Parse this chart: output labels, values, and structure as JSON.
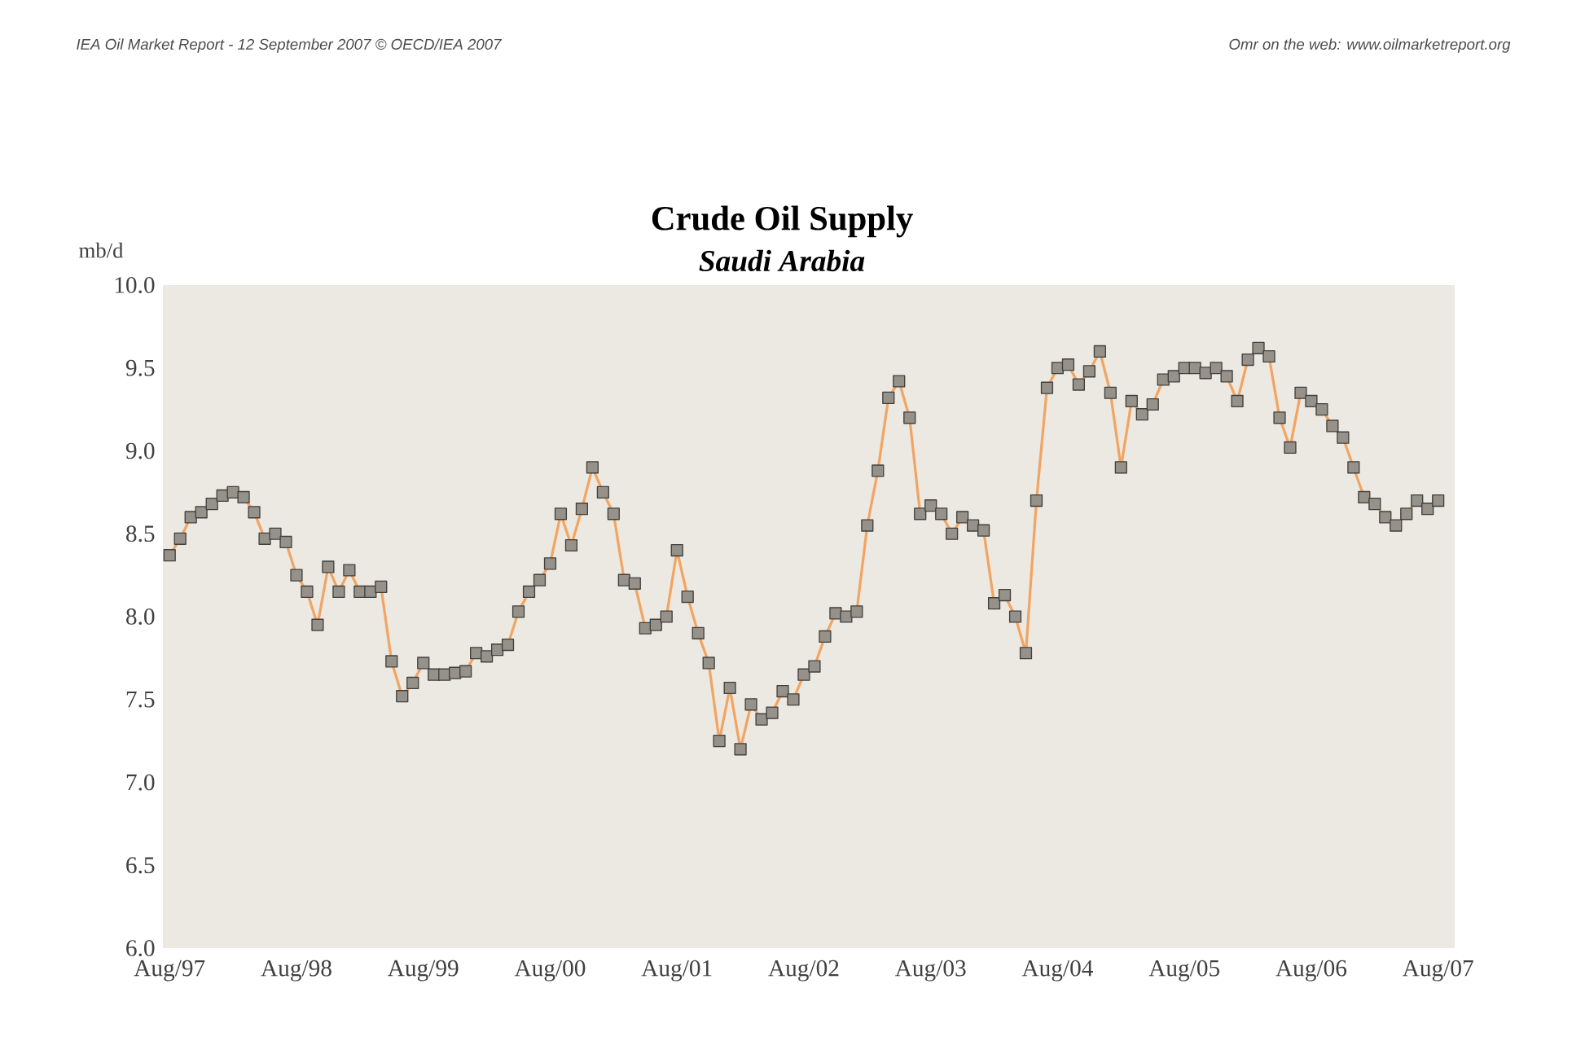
{
  "chart_data": {
    "type": "line",
    "title": "Crude Oil Supply",
    "subtitle": "Saudi Arabia",
    "ylabel": "mb/d",
    "annotations": [
      "IEA Oil Market Report - 12 September 2007   © OECD/IEA 2007",
      "Omr on the web: www.oilmarketreport.org"
    ],
    "x": [
      "1997-08",
      "1997-09",
      "1997-10",
      "1997-11",
      "1997-12",
      "1998-01",
      "1998-02",
      "1998-03",
      "1998-04",
      "1998-05",
      "1998-06",
      "1998-07",
      "1998-08",
      "1998-09",
      "1998-10",
      "1998-11",
      "1998-12",
      "1999-01",
      "1999-02",
      "1999-03",
      "1999-04",
      "1999-05",
      "1999-06",
      "1999-07",
      "1999-08",
      "1999-09",
      "1999-10",
      "1999-11",
      "1999-12",
      "2000-01",
      "2000-02",
      "2000-03",
      "2000-04",
      "2000-05",
      "2000-06",
      "2000-07",
      "2000-08",
      "2000-09",
      "2000-10",
      "2000-11",
      "2000-12",
      "2001-01",
      "2001-02",
      "2001-03",
      "2001-04",
      "2001-05",
      "2001-06",
      "2001-07",
      "2001-08",
      "2001-09",
      "2001-10",
      "2001-11",
      "2001-12",
      "2002-01",
      "2002-02",
      "2002-03",
      "2002-04",
      "2002-05",
      "2002-06",
      "2002-07",
      "2002-08",
      "2002-09",
      "2002-10",
      "2002-11",
      "2002-12",
      "2003-01",
      "2003-02",
      "2003-03",
      "2003-04",
      "2003-05",
      "2003-06",
      "2003-07",
      "2003-08",
      "2003-09",
      "2003-10",
      "2003-11",
      "2003-12",
      "2004-01",
      "2004-02",
      "2004-03",
      "2004-04",
      "2004-05",
      "2004-06",
      "2004-07",
      "2004-08",
      "2004-09",
      "2004-10",
      "2004-11",
      "2004-12",
      "2005-01",
      "2005-02",
      "2005-03",
      "2005-04",
      "2005-05",
      "2005-06",
      "2005-07",
      "2005-08",
      "2005-09",
      "2005-10",
      "2005-11",
      "2005-12",
      "2006-01",
      "2006-02",
      "2006-03",
      "2006-04",
      "2006-05",
      "2006-06",
      "2006-07",
      "2006-08",
      "2006-09",
      "2006-10",
      "2006-11",
      "2006-12",
      "2007-01",
      "2007-02",
      "2007-03",
      "2007-04",
      "2007-05",
      "2007-06",
      "2007-07",
      "2007-08"
    ],
    "series": [
      {
        "color": "#f2a462",
        "values": [
          8.37,
          8.47,
          8.6,
          8.63,
          8.68,
          8.73,
          8.75,
          8.72,
          8.63,
          8.47,
          8.5,
          8.45,
          8.25,
          8.15,
          7.95,
          8.3,
          8.15,
          8.28,
          8.15,
          8.15,
          8.18,
          7.73,
          7.52,
          7.6,
          7.72,
          7.65,
          7.65,
          7.66,
          7.67,
          7.78,
          7.76,
          7.8,
          7.83,
          8.03,
          8.15,
          8.22,
          8.32,
          8.62,
          8.43,
          8.65,
          8.9,
          8.75,
          8.62,
          8.22,
          8.2,
          7.93,
          7.95,
          8.0,
          8.4,
          8.12,
          7.9,
          7.72,
          7.25,
          7.57,
          7.2,
          7.47,
          7.38,
          7.42,
          7.55,
          7.5,
          7.65,
          7.7,
          7.88,
          8.02,
          8.0,
          8.03,
          8.55,
          8.88,
          9.32,
          9.42,
          9.2,
          8.62,
          8.67,
          8.62,
          8.5,
          8.6,
          8.55,
          8.52,
          8.08,
          8.13,
          8.0,
          7.78,
          8.7,
          9.38,
          9.5,
          9.52,
          9.4,
          9.48,
          9.6,
          9.35,
          8.9,
          9.3,
          9.22,
          9.28,
          9.43,
          9.45,
          9.5,
          9.5,
          9.47,
          9.5,
          9.45,
          9.3,
          9.55,
          9.62,
          9.57,
          9.2,
          9.02,
          9.35,
          9.3,
          9.25,
          9.15,
          9.08,
          8.9,
          8.72,
          8.68,
          8.6,
          8.55,
          8.62,
          8.7,
          8.65,
          8.7
        ]
      }
    ],
    "marker": "square",
    "line_style": "solid",
    "grid": false,
    "xlim": [
      "1997-07-12",
      "2007-09-18"
    ],
    "xticks": [
      {
        "value": "1997-08",
        "label": "Aug/97"
      },
      {
        "value": "1998-08",
        "label": "Aug/98"
      },
      {
        "value": "1999-08",
        "label": "Aug/99"
      },
      {
        "value": "2000-08",
        "label": "Aug/00"
      },
      {
        "value": "2001-08",
        "label": "Aug/01"
      },
      {
        "value": "2002-08",
        "label": "Aug/02"
      },
      {
        "value": "2003-08",
        "label": "Aug/03"
      },
      {
        "value": "2004-08",
        "label": "Aug/04"
      },
      {
        "value": "2005-08",
        "label": "Aug/05"
      },
      {
        "value": "2006-08",
        "label": "Aug/06"
      },
      {
        "value": "2007-08",
        "label": "Aug/07"
      }
    ],
    "ylim": [
      6,
      10
    ],
    "yticks": [
      {
        "value": 6,
        "label": "6.0"
      },
      {
        "value": 6.5,
        "label": "6.5"
      },
      {
        "value": 7,
        "label": "7.0"
      },
      {
        "value": 7.5,
        "label": "7.5"
      },
      {
        "value": 8,
        "label": "8.0"
      },
      {
        "value": 8.5,
        "label": "8.5"
      },
      {
        "value": 9,
        "label": "9.0"
      },
      {
        "value": 9.5,
        "label": "9.5"
      },
      {
        "value": 10,
        "label": "10.0"
      }
    ]
  }
}
